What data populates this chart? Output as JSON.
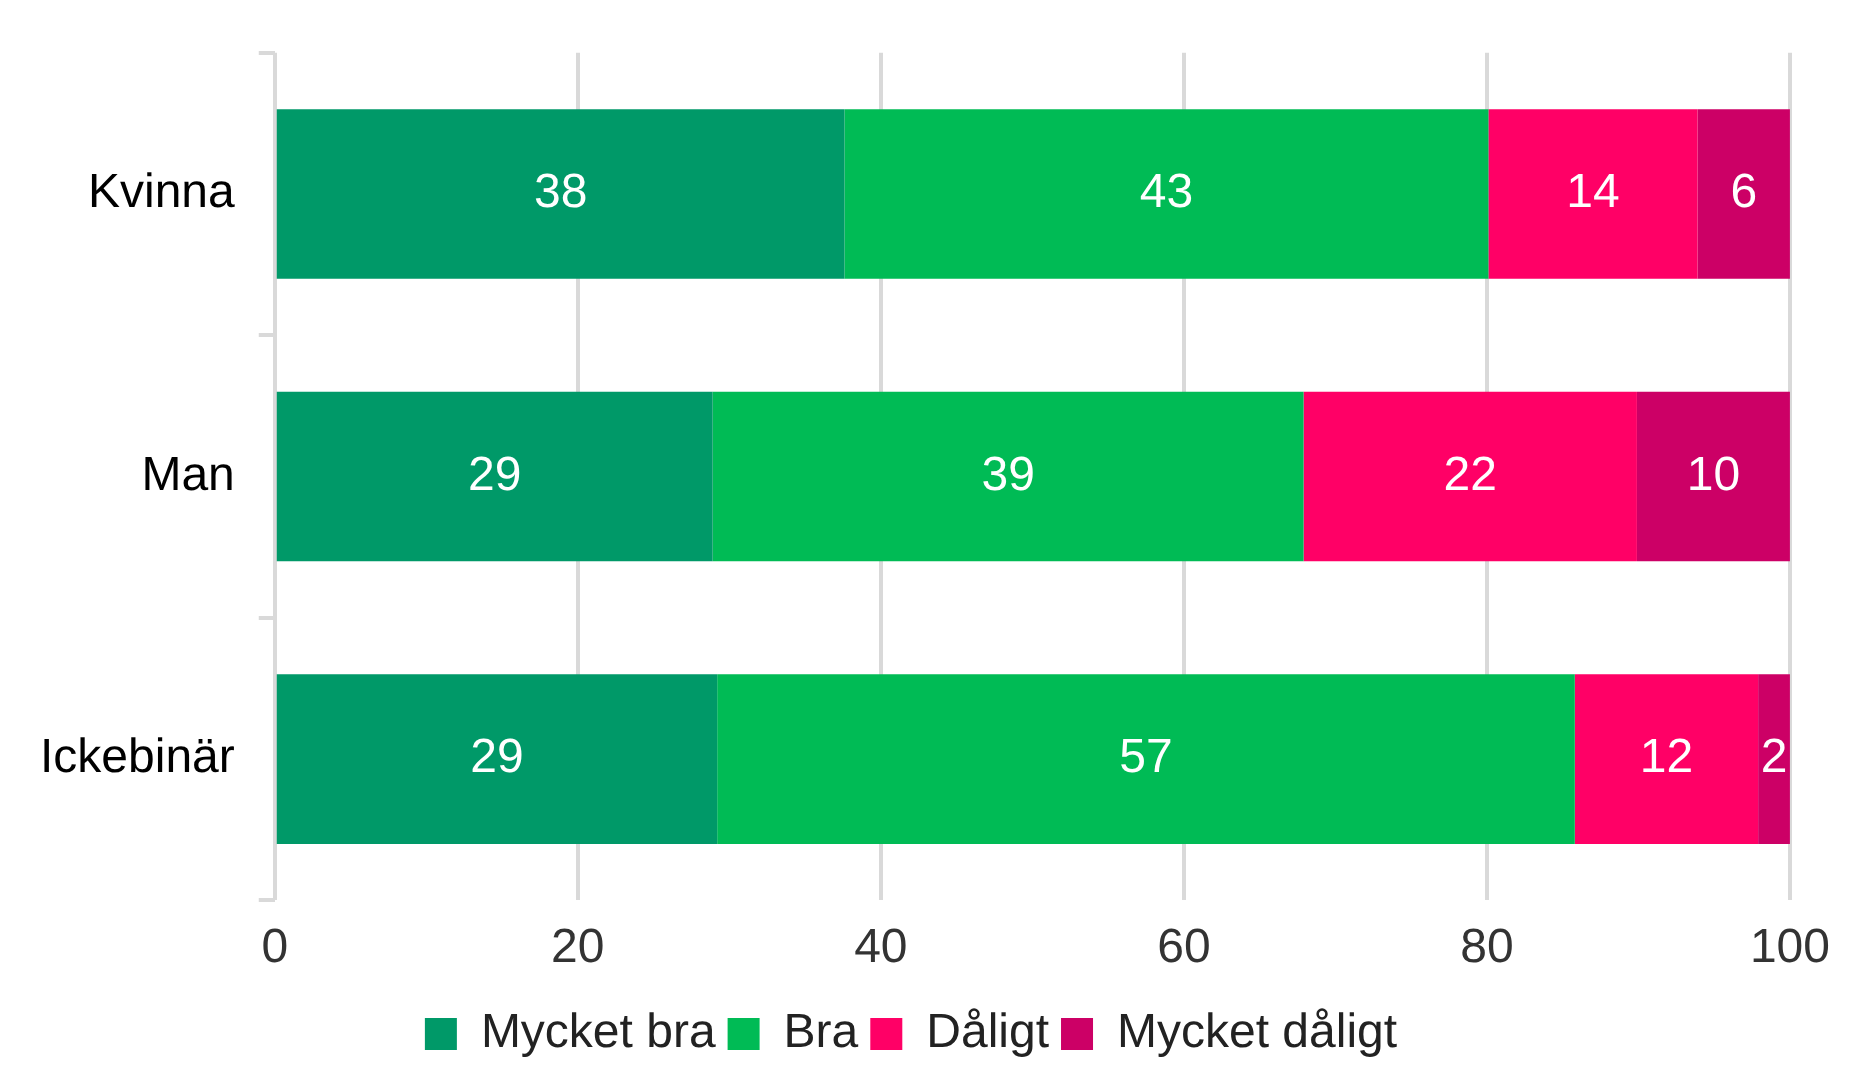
{
  "chart_data": {
    "type": "bar",
    "orientation": "horizontal",
    "stacked": true,
    "categories": [
      "Kvinna",
      "Man",
      "Ickebinär"
    ],
    "series": [
      {
        "name": "Mycket bra",
        "color": "#009968",
        "values": [
          37.6,
          28.9,
          29.2
        ],
        "value_labels": [
          "38",
          "29",
          "29"
        ]
      },
      {
        "name": "Bra",
        "color": "#00bb55",
        "values": [
          42.5,
          39.0,
          56.6
        ],
        "value_labels": [
          "43",
          "39",
          "57"
        ]
      },
      {
        "name": "Dåligt",
        "color": "#ff0066",
        "values": [
          13.8,
          22.0,
          12.1
        ],
        "value_labels": [
          "14",
          "22",
          "12"
        ]
      },
      {
        "name": "Mycket dåligt",
        "color": "#cc0066",
        "values": [
          6.1,
          10.1,
          2.1
        ],
        "value_labels": [
          "6",
          "10",
          "2"
        ]
      }
    ],
    "xlim": [
      0,
      100
    ],
    "xticks": [
      0,
      20,
      40,
      60,
      80,
      100
    ],
    "grid": "x",
    "legend": "bottom"
  }
}
